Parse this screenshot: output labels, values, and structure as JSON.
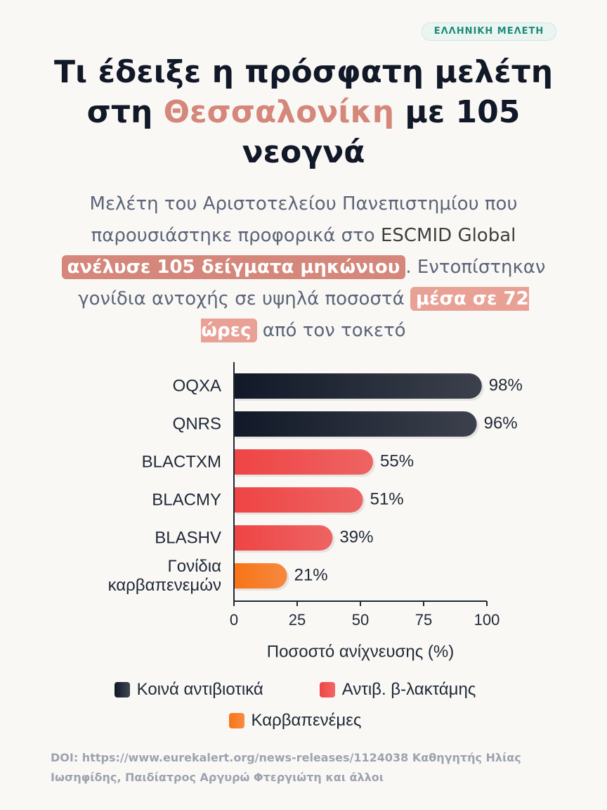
{
  "header": {
    "badge": "ΕΛΛΗΝΙΚΗ ΜΕΛΕΤΗ",
    "title": {
      "before": "Τι έδειξε η πρόσφατη μελέτη στη",
      "highlight": "Θεσσαλονίκη",
      "after": "με 105 νεογνά"
    },
    "subtitle": {
      "part1": "Μελέτη του Αριστοτελείου Πανεπιστημίου που παρουσιάστηκε προφορικά στο",
      "part2": "ESCMID Global",
      "highlight1": "ανέλυσε 105 δείγματα μηκώνιου",
      "part3": ".",
      "part4": "Εντοπίστηκαν γονίδια αντοχής σε υψηλά ποσοστά",
      "highlight2": "μέσα σε 72 ώρες",
      "part5": "από τον τοκετό"
    }
  },
  "chart_data": {
    "type": "barh",
    "categories": [
      "OQXA",
      "QNRS",
      "BLACTXM",
      "BLACMY",
      "BLASHV",
      "Γονίδια καρβαπενεμών"
    ],
    "series": [
      {
        "name": "Κοινά αντιβιοτικά",
        "color": "#111827",
        "values": [
          98,
          96,
          null,
          null,
          null,
          null
        ],
        "value_labels": [
          "98%",
          "96%",
          null,
          null,
          null,
          null
        ]
      },
      {
        "name": "Αντιβ. β-λακτάμης",
        "color": "#ef4444",
        "values": [
          null,
          null,
          55,
          51,
          39,
          null
        ],
        "value_labels": [
          null,
          null,
          "55%",
          "51%",
          "39%",
          null
        ]
      },
      {
        "name": "Καρβαπενέμες",
        "color": "#f97316",
        "values": [
          null,
          null,
          null,
          null,
          null,
          21
        ],
        "value_labels": [
          null,
          null,
          null,
          null,
          null,
          "21%"
        ]
      }
    ],
    "xlabel": "Ποσοστό ανίχνευσης (%)",
    "xlim": [
      0,
      100
    ],
    "xticks": [
      0,
      25,
      50,
      75,
      100
    ]
  },
  "footer": "DOI: https://www.eurekalert.org/news-releases/1124038 Καθηγητής Ηλίας Ιωσηφίδης, Παιδίατρος Αργυρώ Φτεργιώτη και άλλοι"
}
